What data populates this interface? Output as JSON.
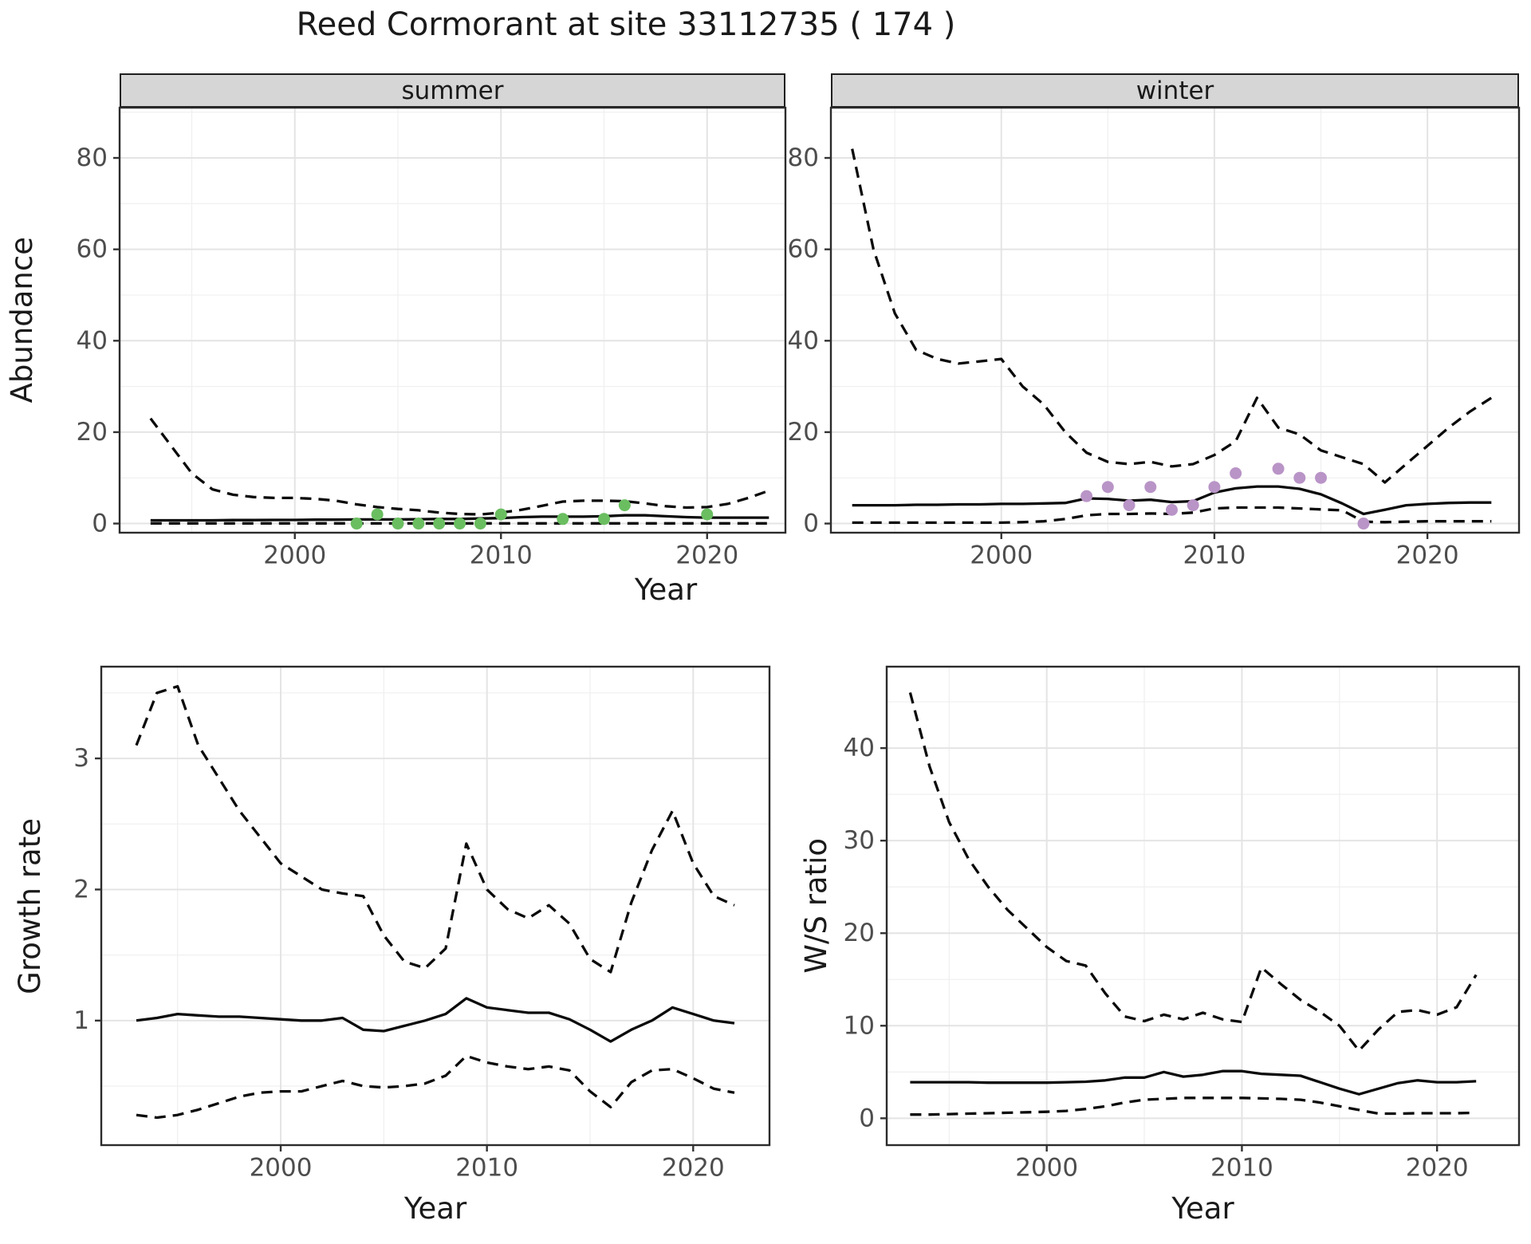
{
  "title": "Reed Cormorant at site 33112735 ( 174 )",
  "colors": {
    "line": "#0a0a0a",
    "summer_point": "#6abe60",
    "winter_point": "#b994c7",
    "grid_major": "#e4e4e4",
    "grid_minor": "#f0f0f0",
    "strip_bg": "#d6d6d6",
    "panel_border": "#2b2b2b",
    "tick_mark": "#333333",
    "tick_text": "#4d4d4d",
    "text": "#1a1a1a"
  },
  "chart_data": [
    {
      "id": "abundance-summer",
      "type": "line",
      "facet_label": "summer",
      "xlabel": "Year",
      "ylabel": "Abundance",
      "xlim": [
        1991.5,
        2023.8
      ],
      "ylim": [
        -2,
        91
      ],
      "x_ticks": [
        2000,
        2010,
        2020
      ],
      "x_minor": [
        1995,
        2005,
        2015
      ],
      "y_ticks": [
        0,
        20,
        40,
        60,
        80
      ],
      "y_minor": [
        10,
        30,
        50,
        70,
        90
      ],
      "grid": true,
      "legend": "none",
      "series": [
        {
          "name": "summer-upper-ci",
          "style": "dashed",
          "x": [
            1993,
            1994,
            1995,
            1996,
            1997,
            1998,
            1999,
            2000,
            2001,
            2002,
            2003,
            2004,
            2005,
            2006,
            2007,
            2008,
            2009,
            2010,
            2011,
            2012,
            2013,
            2014,
            2015,
            2016,
            2017,
            2018,
            2019,
            2020,
            2021,
            2022,
            2023
          ],
          "y": [
            23,
            17,
            11,
            7.5,
            6.3,
            5.8,
            5.6,
            5.6,
            5.4,
            5,
            4.2,
            3.6,
            3.2,
            2.9,
            2.4,
            2.1,
            2,
            2.4,
            3,
            3.9,
            4.8,
            5,
            5,
            4.9,
            4.4,
            3.8,
            3.5,
            3.6,
            4.3,
            5.6,
            7.2
          ]
        },
        {
          "name": "summer-median",
          "style": "solid",
          "x": [
            1993,
            1994,
            1995,
            1996,
            1997,
            1998,
            1999,
            2000,
            2001,
            2002,
            2003,
            2004,
            2005,
            2006,
            2007,
            2008,
            2009,
            2010,
            2011,
            2012,
            2013,
            2014,
            2015,
            2016,
            2017,
            2018,
            2019,
            2020,
            2021,
            2022,
            2023
          ],
          "y": [
            0.7,
            0.7,
            0.7,
            0.7,
            0.75,
            0.75,
            0.8,
            0.8,
            0.85,
            0.85,
            0.9,
            0.9,
            0.9,
            0.95,
            1,
            1,
            1.1,
            1.2,
            1.4,
            1.5,
            1.5,
            1.5,
            1.6,
            1.8,
            1.8,
            1.6,
            1.4,
            1.3,
            1.3,
            1.3,
            1.3
          ]
        },
        {
          "name": "summer-lower-ci",
          "style": "dashed",
          "x": [
            1993,
            1994,
            1995,
            1996,
            1997,
            1998,
            1999,
            2000,
            2001,
            2002,
            2003,
            2004,
            2005,
            2006,
            2007,
            2008,
            2009,
            2010,
            2011,
            2012,
            2013,
            2014,
            2015,
            2016,
            2017,
            2018,
            2019,
            2020,
            2021,
            2022,
            2023
          ],
          "y": [
            0.05,
            0.05,
            0.05,
            0.05,
            0.05,
            0.05,
            0.05,
            0.05,
            0.05,
            0.05,
            0.05,
            0.05,
            0.05,
            0.05,
            0.05,
            0.05,
            0.05,
            0.05,
            0.05,
            0.05,
            0.05,
            0.05,
            0.05,
            0.05,
            0.05,
            0.05,
            0.05,
            0.05,
            0.05,
            0.05,
            0.05
          ]
        },
        {
          "name": "summer-observed-counts",
          "style": "points",
          "color": "#6abe60",
          "x": [
            2003,
            2004,
            2005,
            2006,
            2007,
            2008,
            2009,
            2010,
            2013,
            2015,
            2016,
            2020
          ],
          "y": [
            0,
            2,
            0,
            0,
            0,
            0,
            0,
            2,
            1,
            1,
            4,
            2
          ]
        }
      ]
    },
    {
      "id": "abundance-winter",
      "type": "line",
      "facet_label": "winter",
      "xlabel": "Year",
      "ylabel": "Abundance",
      "xlim": [
        1992,
        2024.3
      ],
      "ylim": [
        -2,
        91
      ],
      "x_ticks": [
        2000,
        2010,
        2020
      ],
      "x_minor": [
        1995,
        2005,
        2015
      ],
      "y_ticks": [
        0,
        20,
        40,
        60,
        80
      ],
      "y_minor": [
        10,
        30,
        50,
        70,
        90
      ],
      "grid": true,
      "legend": "none",
      "series": [
        {
          "name": "winter-upper-ci",
          "style": "dashed",
          "x": [
            1993,
            1994,
            1995,
            1996,
            1997,
            1998,
            1999,
            2000,
            2001,
            2002,
            2003,
            2004,
            2005,
            2006,
            2007,
            2008,
            2009,
            2010,
            2011,
            2012,
            2013,
            2014,
            2015,
            2016,
            2017,
            2018,
            2019,
            2020,
            2021,
            2022,
            2023
          ],
          "y": [
            82,
            60,
            46,
            38,
            36,
            35,
            35.5,
            36,
            30,
            26,
            20,
            15.5,
            13.5,
            13,
            13.5,
            12.5,
            13,
            15,
            18,
            27.5,
            21,
            19.5,
            16,
            14.5,
            13,
            9,
            13,
            17,
            21,
            24.5,
            27.5
          ]
        },
        {
          "name": "winter-median",
          "style": "solid",
          "x": [
            1993,
            1994,
            1995,
            1996,
            1997,
            1998,
            1999,
            2000,
            2001,
            2002,
            2003,
            2004,
            2005,
            2006,
            2007,
            2008,
            2009,
            2010,
            2011,
            2012,
            2013,
            2014,
            2015,
            2016,
            2017,
            2018,
            2019,
            2020,
            2021,
            2022,
            2023
          ],
          "y": [
            4,
            4,
            4,
            4.1,
            4.1,
            4.2,
            4.2,
            4.3,
            4.3,
            4.4,
            4.5,
            5.5,
            5.4,
            5,
            5.2,
            4.7,
            4.9,
            6.8,
            7.7,
            8.1,
            8.1,
            7.6,
            6.4,
            4.4,
            2.1,
            3,
            4,
            4.3,
            4.5,
            4.6,
            4.6
          ]
        },
        {
          "name": "winter-lower-ci",
          "style": "dashed",
          "x": [
            1993,
            1994,
            1995,
            1996,
            1997,
            1998,
            1999,
            2000,
            2001,
            2002,
            2003,
            2004,
            2005,
            2006,
            2007,
            2008,
            2009,
            2010,
            2011,
            2012,
            2013,
            2014,
            2015,
            2016,
            2017,
            2018,
            2019,
            2020,
            2021,
            2022,
            2023
          ],
          "y": [
            0.2,
            0.2,
            0.2,
            0.2,
            0.2,
            0.2,
            0.2,
            0.2,
            0.3,
            0.5,
            1,
            1.8,
            2.1,
            2.1,
            2.2,
            2.1,
            2.4,
            3.3,
            3.5,
            3.5,
            3.5,
            3.3,
            3.1,
            2.9,
            0.4,
            0.3,
            0.4,
            0.5,
            0.5,
            0.5,
            0.5
          ]
        },
        {
          "name": "winter-observed-counts",
          "style": "points",
          "color": "#b994c7",
          "x": [
            2004,
            2005,
            2006,
            2007,
            2008,
            2009,
            2010,
            2011,
            2013,
            2014,
            2015,
            2017
          ],
          "y": [
            6,
            8,
            4,
            8,
            3,
            4,
            8,
            11,
            12,
            10,
            10,
            0
          ]
        }
      ]
    },
    {
      "id": "growth-rate",
      "type": "line",
      "facet_label": "",
      "xlabel": "Year",
      "ylabel": "Growth rate",
      "xlim": [
        1991.3,
        2023.7
      ],
      "ylim": [
        0.05,
        3.7
      ],
      "x_ticks": [
        2000,
        2010,
        2020
      ],
      "x_minor": [
        1995,
        2005,
        2015
      ],
      "y_ticks": [
        1,
        2,
        3
      ],
      "y_minor": [
        0.5,
        1.5,
        2.5,
        3.5
      ],
      "grid": true,
      "legend": "none",
      "series": [
        {
          "name": "growth-upper-ci",
          "style": "dashed",
          "x": [
            1993,
            1994,
            1995,
            1996,
            1997,
            1998,
            1999,
            2000,
            2001,
            2002,
            2003,
            2004,
            2005,
            2006,
            2007,
            2008,
            2009,
            2010,
            2011,
            2012,
            2013,
            2014,
            2015,
            2016,
            2017,
            2018,
            2019,
            2020,
            2021,
            2022
          ],
          "y": [
            3.1,
            3.5,
            3.55,
            3.1,
            2.85,
            2.6,
            2.4,
            2.2,
            2.1,
            2,
            1.97,
            1.95,
            1.65,
            1.45,
            1.4,
            1.55,
            2.35,
            2,
            1.85,
            1.78,
            1.88,
            1.74,
            1.47,
            1.37,
            1.9,
            2.3,
            2.6,
            2.2,
            1.95,
            1.88
          ]
        },
        {
          "name": "growth-median",
          "style": "solid",
          "x": [
            1993,
            1994,
            1995,
            1996,
            1997,
            1998,
            1999,
            2000,
            2001,
            2002,
            2003,
            2004,
            2005,
            2006,
            2007,
            2008,
            2009,
            2010,
            2011,
            2012,
            2013,
            2014,
            2015,
            2016,
            2017,
            2018,
            2019,
            2020,
            2021,
            2022
          ],
          "y": [
            1,
            1.02,
            1.05,
            1.04,
            1.03,
            1.03,
            1.02,
            1.01,
            1,
            1,
            1.02,
            0.93,
            0.92,
            0.96,
            1,
            1.05,
            1.17,
            1.1,
            1.08,
            1.06,
            1.06,
            1.01,
            0.93,
            0.84,
            0.93,
            1,
            1.1,
            1.05,
            1,
            0.98
          ]
        },
        {
          "name": "growth-lower-ci",
          "style": "dashed",
          "x": [
            1993,
            1994,
            1995,
            1996,
            1997,
            1998,
            1999,
            2000,
            2001,
            2002,
            2003,
            2004,
            2005,
            2006,
            2007,
            2008,
            2009,
            2010,
            2011,
            2012,
            2013,
            2014,
            2015,
            2016,
            2017,
            2018,
            2019,
            2020,
            2021,
            2022
          ],
          "y": [
            0.28,
            0.26,
            0.28,
            0.32,
            0.37,
            0.42,
            0.45,
            0.46,
            0.46,
            0.5,
            0.54,
            0.5,
            0.49,
            0.5,
            0.52,
            0.58,
            0.73,
            0.68,
            0.65,
            0.63,
            0.65,
            0.62,
            0.46,
            0.34,
            0.53,
            0.62,
            0.63,
            0.56,
            0.48,
            0.45
          ]
        }
      ]
    },
    {
      "id": "ws-ratio",
      "type": "line",
      "facet_label": "",
      "xlabel": "Year",
      "ylabel": "W/S ratio",
      "xlim": [
        1991.8,
        2024.2
      ],
      "ylim": [
        -2.9,
        48.8
      ],
      "x_ticks": [
        2000,
        2010,
        2020
      ],
      "x_minor": [
        1995,
        2005,
        2015
      ],
      "y_ticks": [
        0,
        10,
        20,
        30,
        40
      ],
      "y_minor": [
        5,
        15,
        25,
        35,
        45
      ],
      "grid": true,
      "legend": "none",
      "series": [
        {
          "name": "ws-upper-ci",
          "style": "dashed",
          "x": [
            1993,
            1994,
            1995,
            1996,
            1997,
            1998,
            1999,
            2000,
            2001,
            2002,
            2003,
            2004,
            2005,
            2006,
            2007,
            2008,
            2009,
            2010,
            2011,
            2012,
            2013,
            2014,
            2015,
            2016,
            2017,
            2018,
            2019,
            2020,
            2021,
            2022
          ],
          "y": [
            46,
            38,
            32,
            28,
            25,
            22.5,
            20.5,
            18.5,
            17,
            16.5,
            13.5,
            11,
            10.5,
            11.2,
            10.7,
            11.4,
            10.7,
            10.4,
            16.3,
            14.5,
            12.8,
            11.5,
            10,
            7.3,
            9.6,
            11.5,
            11.7,
            11.2,
            12,
            15.5
          ]
        },
        {
          "name": "ws-median",
          "style": "solid",
          "x": [
            1993,
            1994,
            1995,
            1996,
            1997,
            1998,
            1999,
            2000,
            2001,
            2002,
            2003,
            2004,
            2005,
            2006,
            2007,
            2008,
            2009,
            2010,
            2011,
            2012,
            2013,
            2014,
            2015,
            2016,
            2017,
            2018,
            2019,
            2020,
            2021,
            2022
          ],
          "y": [
            3.9,
            3.9,
            3.9,
            3.9,
            3.85,
            3.85,
            3.85,
            3.85,
            3.9,
            3.95,
            4.1,
            4.4,
            4.4,
            5,
            4.5,
            4.7,
            5.1,
            5.1,
            4.8,
            4.7,
            4.6,
            3.9,
            3.2,
            2.6,
            3.2,
            3.8,
            4.1,
            3.9,
            3.9,
            4
          ]
        },
        {
          "name": "ws-lower-ci",
          "style": "dashed",
          "x": [
            1993,
            1994,
            1995,
            1996,
            1997,
            1998,
            1999,
            2000,
            2001,
            2002,
            2003,
            2004,
            2005,
            2006,
            2007,
            2008,
            2009,
            2010,
            2011,
            2012,
            2013,
            2014,
            2015,
            2016,
            2017,
            2018,
            2019,
            2020,
            2021,
            2022
          ],
          "y": [
            0.4,
            0.4,
            0.45,
            0.5,
            0.55,
            0.6,
            0.65,
            0.7,
            0.8,
            1,
            1.3,
            1.7,
            2,
            2.1,
            2.2,
            2.2,
            2.2,
            2.2,
            2.15,
            2.1,
            2,
            1.7,
            1.3,
            0.9,
            0.5,
            0.5,
            0.55,
            0.55,
            0.55,
            0.6
          ]
        }
      ]
    }
  ]
}
